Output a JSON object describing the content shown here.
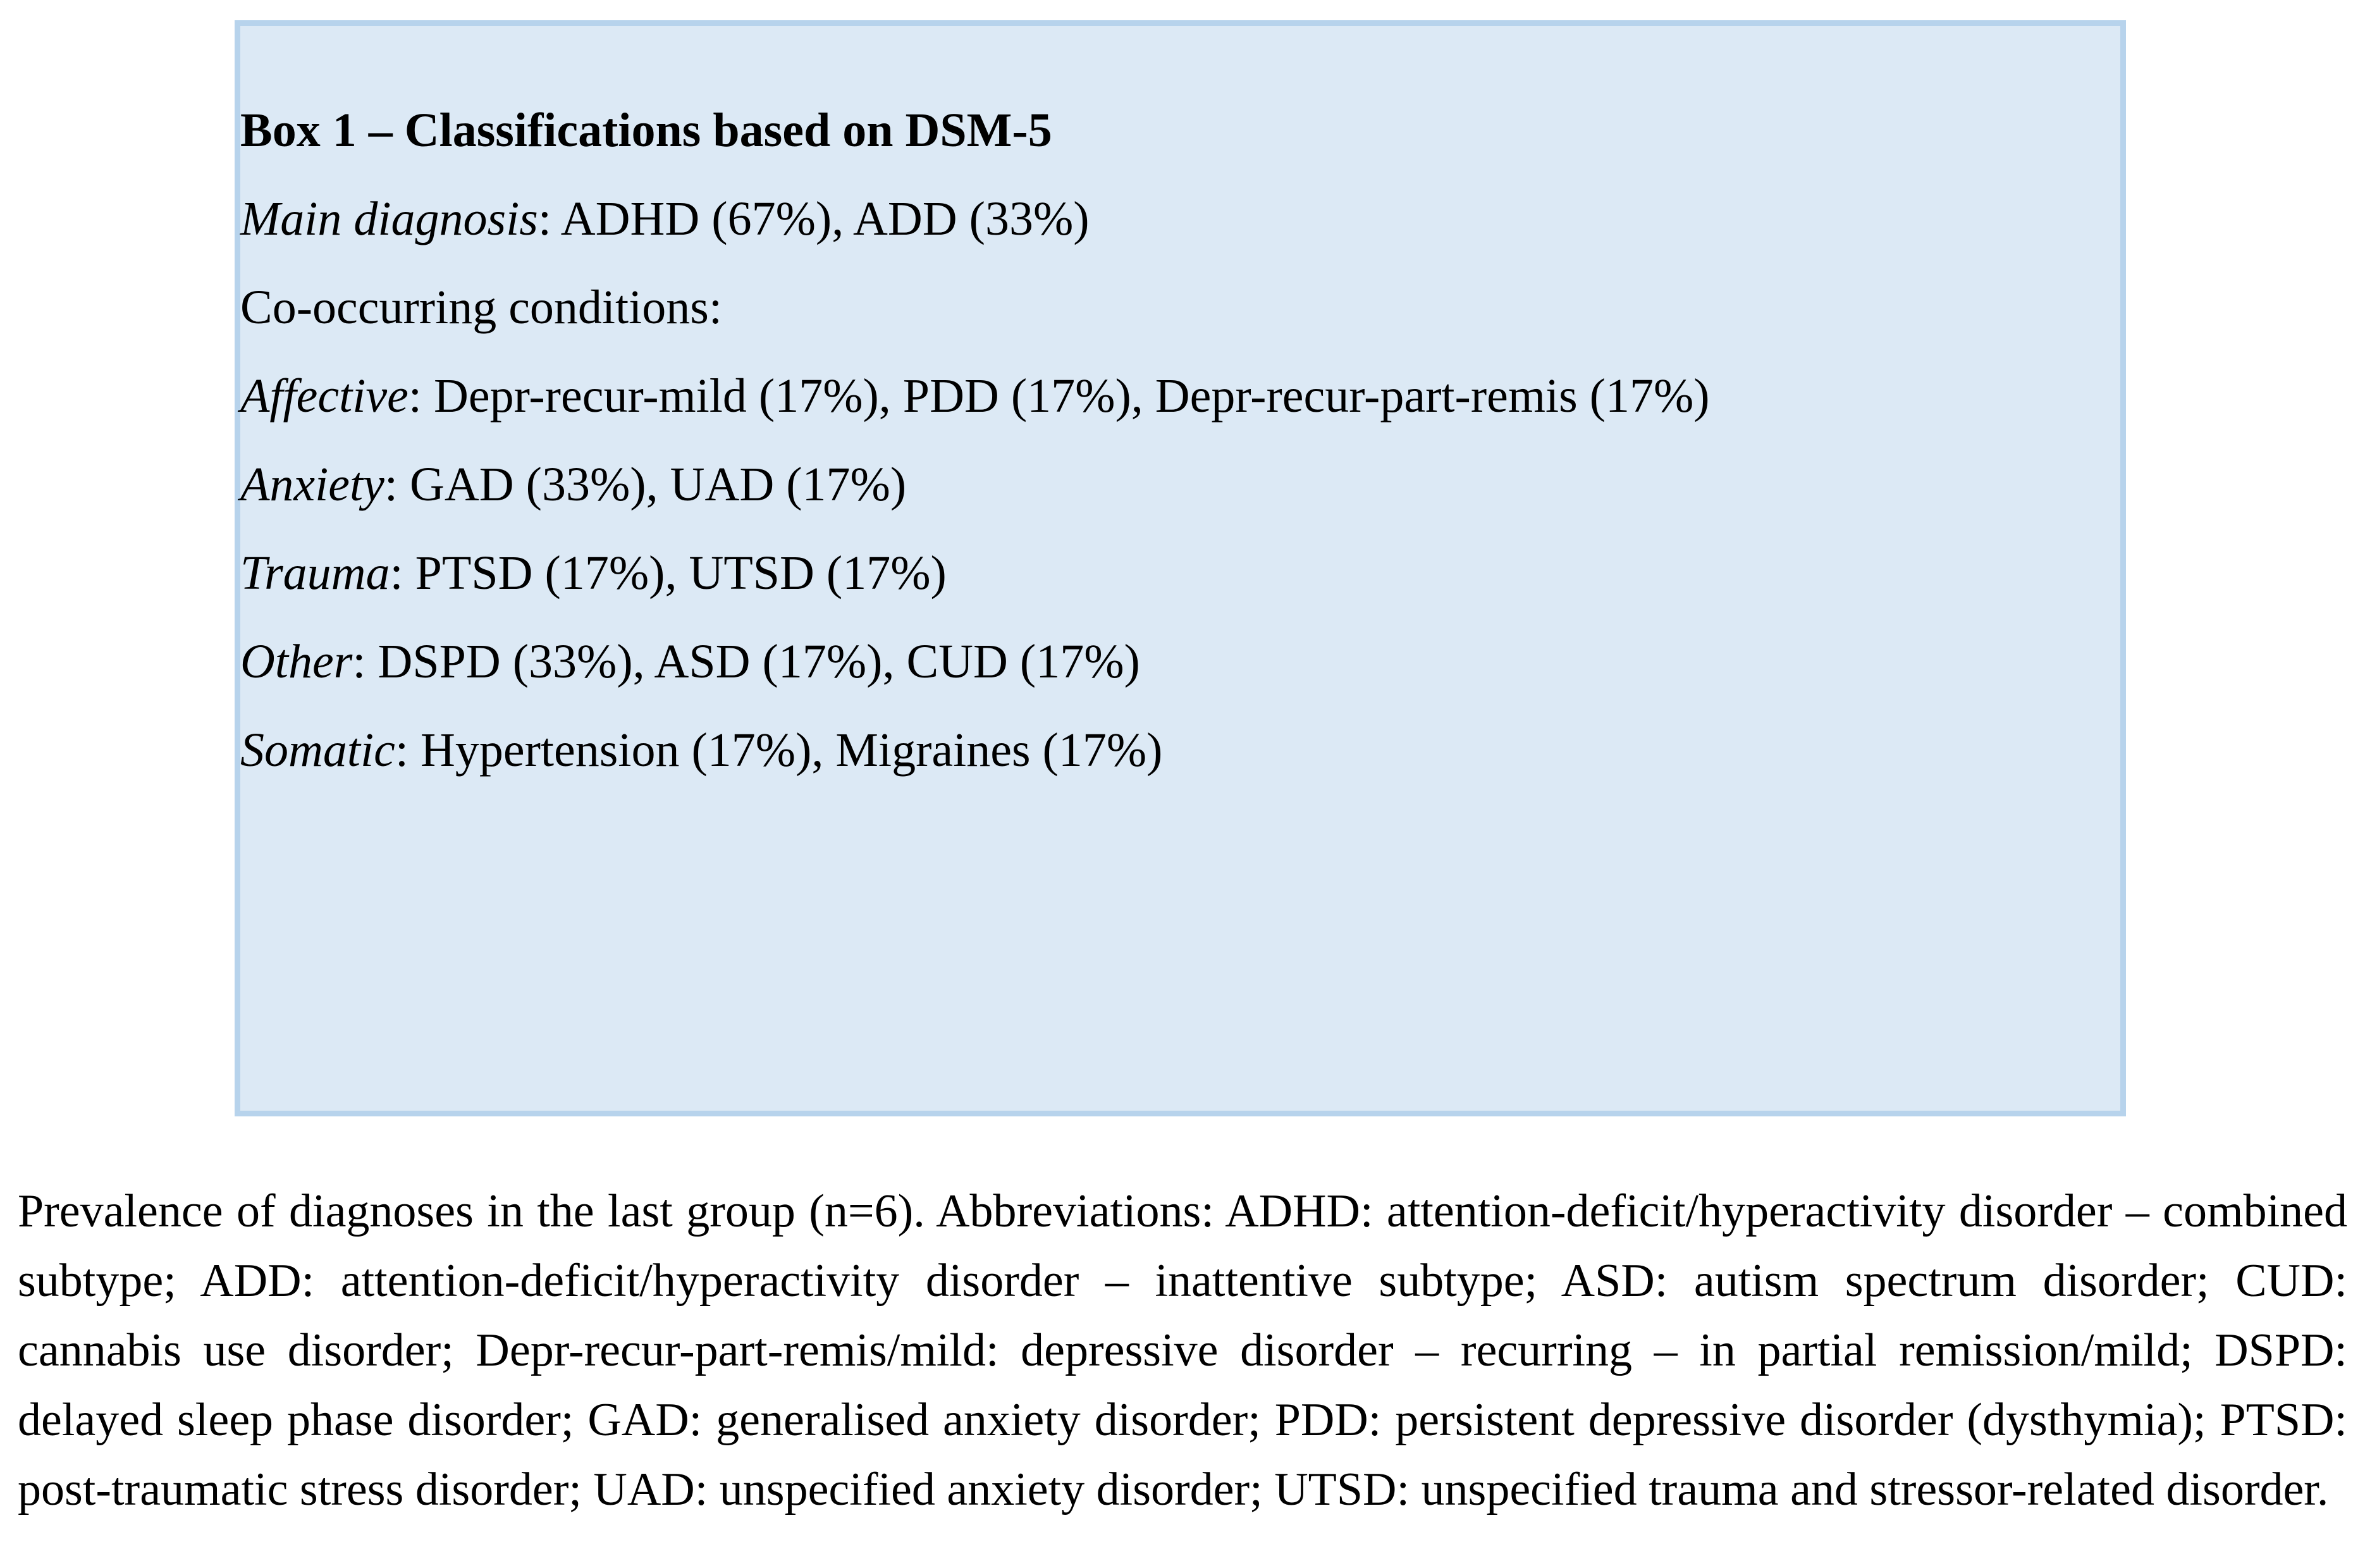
{
  "box": {
    "title": "Box 1 – Classifications based on DSM-5",
    "separator": ": ",
    "main_diagnosis": {
      "label": "Main diagnosis",
      "value": "ADHD (67%), ADD (33%)"
    },
    "co_occurring_heading": "Co-occurring conditions:",
    "conditions": [
      {
        "label": "Affective",
        "value": "Depr-recur-mild (17%), PDD (17%), Depr-recur-part-remis (17%)",
        "gap_before": false
      },
      {
        "label": "Anxiety",
        "value": "GAD (33%), UAD (17%)",
        "gap_before": false
      },
      {
        "label": "Trauma",
        "value": "PTSD (17%), UTSD (17%)",
        "gap_before": false
      },
      {
        "label": "Other",
        "value": "DSPD (33%), ASD (17%), CUD (17%)",
        "gap_before": true
      },
      {
        "label": "Somatic",
        "value": "Hypertension (17%), Migraines (17%)",
        "gap_before": true
      }
    ]
  },
  "caption": {
    "text": "Prevalence of diagnoses in the last group (n=6). Abbreviations: ADHD: attention-deficit/hyperactivity disorder – combined subtype; ADD: attention-deficit/hyperactivity disorder – inattentive subtype; ASD: autism spectrum disorder; CUD: cannabis use disorder; Depr-recur-part-remis/mild: depressive disorder – recurring – in partial remission/mild; DSPD: delayed sleep phase disorder; GAD: generalised anxiety disorder; PDD: persistent depressive disorder (dysthymia); PTSD: post-traumatic stress disorder; UAD: unspecified anxiety disorder; UTSD: unspecified trauma and stressor-related disorder."
  },
  "colors": {
    "box_background": "#dce9f5",
    "box_border": "#b7d3ec",
    "text": "#000000"
  }
}
